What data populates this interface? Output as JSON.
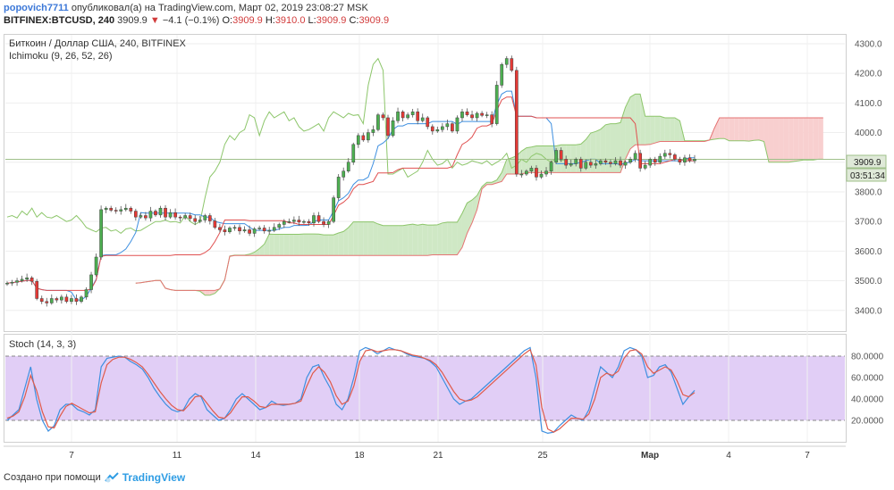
{
  "header": {
    "author": "popovich7711",
    "published_text": "опубликовал(а) на TradingView.com, Март 02, 2019 23:08:27 MSK",
    "symbol": "BITFINEX:BTCUSD, 240",
    "last": "3909.9",
    "change_arrow": "▼",
    "change": "−4.1 (−0.1%)",
    "o_label": "O:",
    "o_value": "3909.9",
    "h_label": "H:",
    "h_value": "3910.0",
    "l_label": "L:",
    "l_value": "3909.9",
    "c_label": "C:",
    "c_value": "3909.9"
  },
  "chart_data": [
    {
      "type": "candlestick",
      "title": "Биткоин / Доллар США, 240, BITFINEX",
      "indicator_label": "Ichimoku (9, 26, 52, 26)",
      "ylim": [
        3330,
        4330
      ],
      "yticks": [
        "4300.0",
        "4200.0",
        "4100.0",
        "4000.0",
        "3900.0",
        "3800.0",
        "3700.0",
        "3600.0",
        "3500.0",
        "3400.0"
      ],
      "last_price_label": "3909.9",
      "countdown_label": "03:51:34",
      "colors": {
        "up": "#4caf50",
        "down": "#e53935",
        "tenkan": "#3d8fe0",
        "kijun": "#e05050",
        "chikou": "#8dc66b",
        "cloud_bull": "#cfe8c5",
        "cloud_bear": "#f8cfcf"
      },
      "closes": [
        3492,
        3495,
        3500,
        3505,
        3510,
        3498,
        3440,
        3430,
        3425,
        3440,
        3435,
        3445,
        3430,
        3440,
        3430,
        3445,
        3470,
        3520,
        3580,
        3740,
        3745,
        3738,
        3735,
        3740,
        3745,
        3735,
        3715,
        3720,
        3712,
        3735,
        3722,
        3745,
        3715,
        3730,
        3715,
        3712,
        3720,
        3710,
        3700,
        3705,
        3720,
        3702,
        3680,
        3672,
        3665,
        3678,
        3680,
        3668,
        3672,
        3660,
        3675,
        3678,
        3668,
        3670,
        3680,
        3690,
        3700,
        3700,
        3705,
        3698,
        3700,
        3695,
        3720,
        3700,
        3690,
        3700,
        3780,
        3850,
        3870,
        3900,
        3960,
        3990,
        3975,
        4000,
        4010,
        4060,
        4050,
        3990,
        4040,
        4070,
        4050,
        4060,
        4070,
        4040,
        4050,
        4020,
        4005,
        4010,
        4020,
        4030,
        4005,
        4050,
        4070,
        4060,
        4050,
        4065,
        4058,
        4060,
        4030,
        4160,
        4230,
        4250,
        4210,
        3860,
        3860,
        3870,
        3880,
        3850,
        3860,
        3870,
        3900,
        3940,
        3910,
        3890,
        3895,
        3910,
        3880,
        3900,
        3890,
        3895,
        3905,
        3900,
        3895,
        3905,
        3890,
        3900,
        3910,
        3930,
        3880,
        3890,
        3910,
        3900,
        3920,
        3930,
        3925,
        3910,
        3900,
        3915,
        3905,
        3910
      ]
    },
    {
      "type": "line",
      "title": "Stoch (14, 3, 3)",
      "ylim": [
        0,
        100
      ],
      "yticks": [
        "80.0000",
        "60.0000",
        "40.0000",
        "20.0000"
      ],
      "band": [
        20,
        80
      ],
      "series": [
        {
          "color": "#3d8fe0",
          "values": [
            20,
            25,
            30,
            50,
            70,
            40,
            20,
            10,
            15,
            30,
            35,
            35,
            30,
            28,
            25,
            30,
            70,
            78,
            79,
            80,
            79,
            75,
            72,
            68,
            60,
            50,
            42,
            35,
            30,
            28,
            30,
            40,
            45,
            42,
            30,
            25,
            20,
            22,
            30,
            40,
            45,
            40,
            35,
            30,
            32,
            38,
            35,
            34,
            35,
            36,
            40,
            60,
            70,
            72,
            60,
            50,
            35,
            30,
            40,
            60,
            85,
            88,
            86,
            82,
            85,
            88,
            86,
            85,
            82,
            80,
            79,
            78,
            75,
            70,
            60,
            50,
            40,
            35,
            38,
            40,
            45,
            50,
            55,
            60,
            65,
            70,
            75,
            80,
            85,
            88,
            60,
            10,
            8,
            9,
            15,
            20,
            25,
            22,
            20,
            30,
            50,
            70,
            65,
            60,
            70,
            85,
            88,
            86,
            80,
            60,
            62,
            70,
            72,
            65,
            50,
            35,
            42,
            48
          ]
        },
        {
          "color": "#e05a4a",
          "values": [
            22,
            24,
            28,
            42,
            62,
            48,
            28,
            14,
            13,
            24,
            33,
            36,
            33,
            30,
            27,
            28,
            55,
            72,
            77,
            79,
            79,
            77,
            74,
            70,
            63,
            55,
            47,
            40,
            34,
            30,
            29,
            35,
            42,
            43,
            36,
            29,
            23,
            22,
            27,
            35,
            42,
            42,
            38,
            33,
            32,
            35,
            35,
            35,
            35,
            36,
            38,
            52,
            64,
            70,
            65,
            56,
            43,
            35,
            38,
            52,
            75,
            85,
            86,
            84,
            85,
            86,
            86,
            85,
            83,
            81,
            80,
            78,
            76,
            72,
            65,
            56,
            47,
            40,
            38,
            39,
            42,
            47,
            52,
            57,
            62,
            67,
            72,
            77,
            82,
            86,
            72,
            32,
            12,
            9,
            12,
            17,
            22,
            22,
            21,
            26,
            40,
            60,
            64,
            62,
            66,
            78,
            85,
            86,
            82,
            70,
            64,
            67,
            70,
            67,
            57,
            44,
            42,
            46
          ]
        }
      ]
    }
  ],
  "x_axis": {
    "ticks": [
      "7",
      "11",
      "14",
      "18",
      "21",
      "25",
      "Мар",
      "4",
      "7"
    ]
  },
  "footer": {
    "created_text": "Создано при помощи",
    "brand": "TradingView"
  }
}
